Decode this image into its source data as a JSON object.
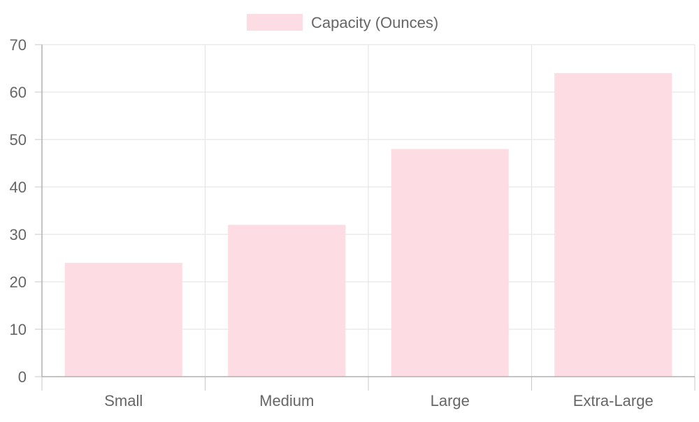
{
  "chart_data": {
    "type": "bar",
    "categories": [
      "Small",
      "Medium",
      "Large",
      "Extra-Large"
    ],
    "series": [
      {
        "name": "Capacity (Ounces)",
        "values": [
          24,
          32,
          48,
          64
        ],
        "color": "#fddde3"
      }
    ],
    "title": "",
    "xlabel": "",
    "ylabel": "",
    "ylim": [
      0,
      70
    ],
    "yticks": [
      "0",
      "10",
      "20",
      "30",
      "40",
      "50",
      "60",
      "70"
    ],
    "grid": true,
    "legend": "top-center"
  }
}
